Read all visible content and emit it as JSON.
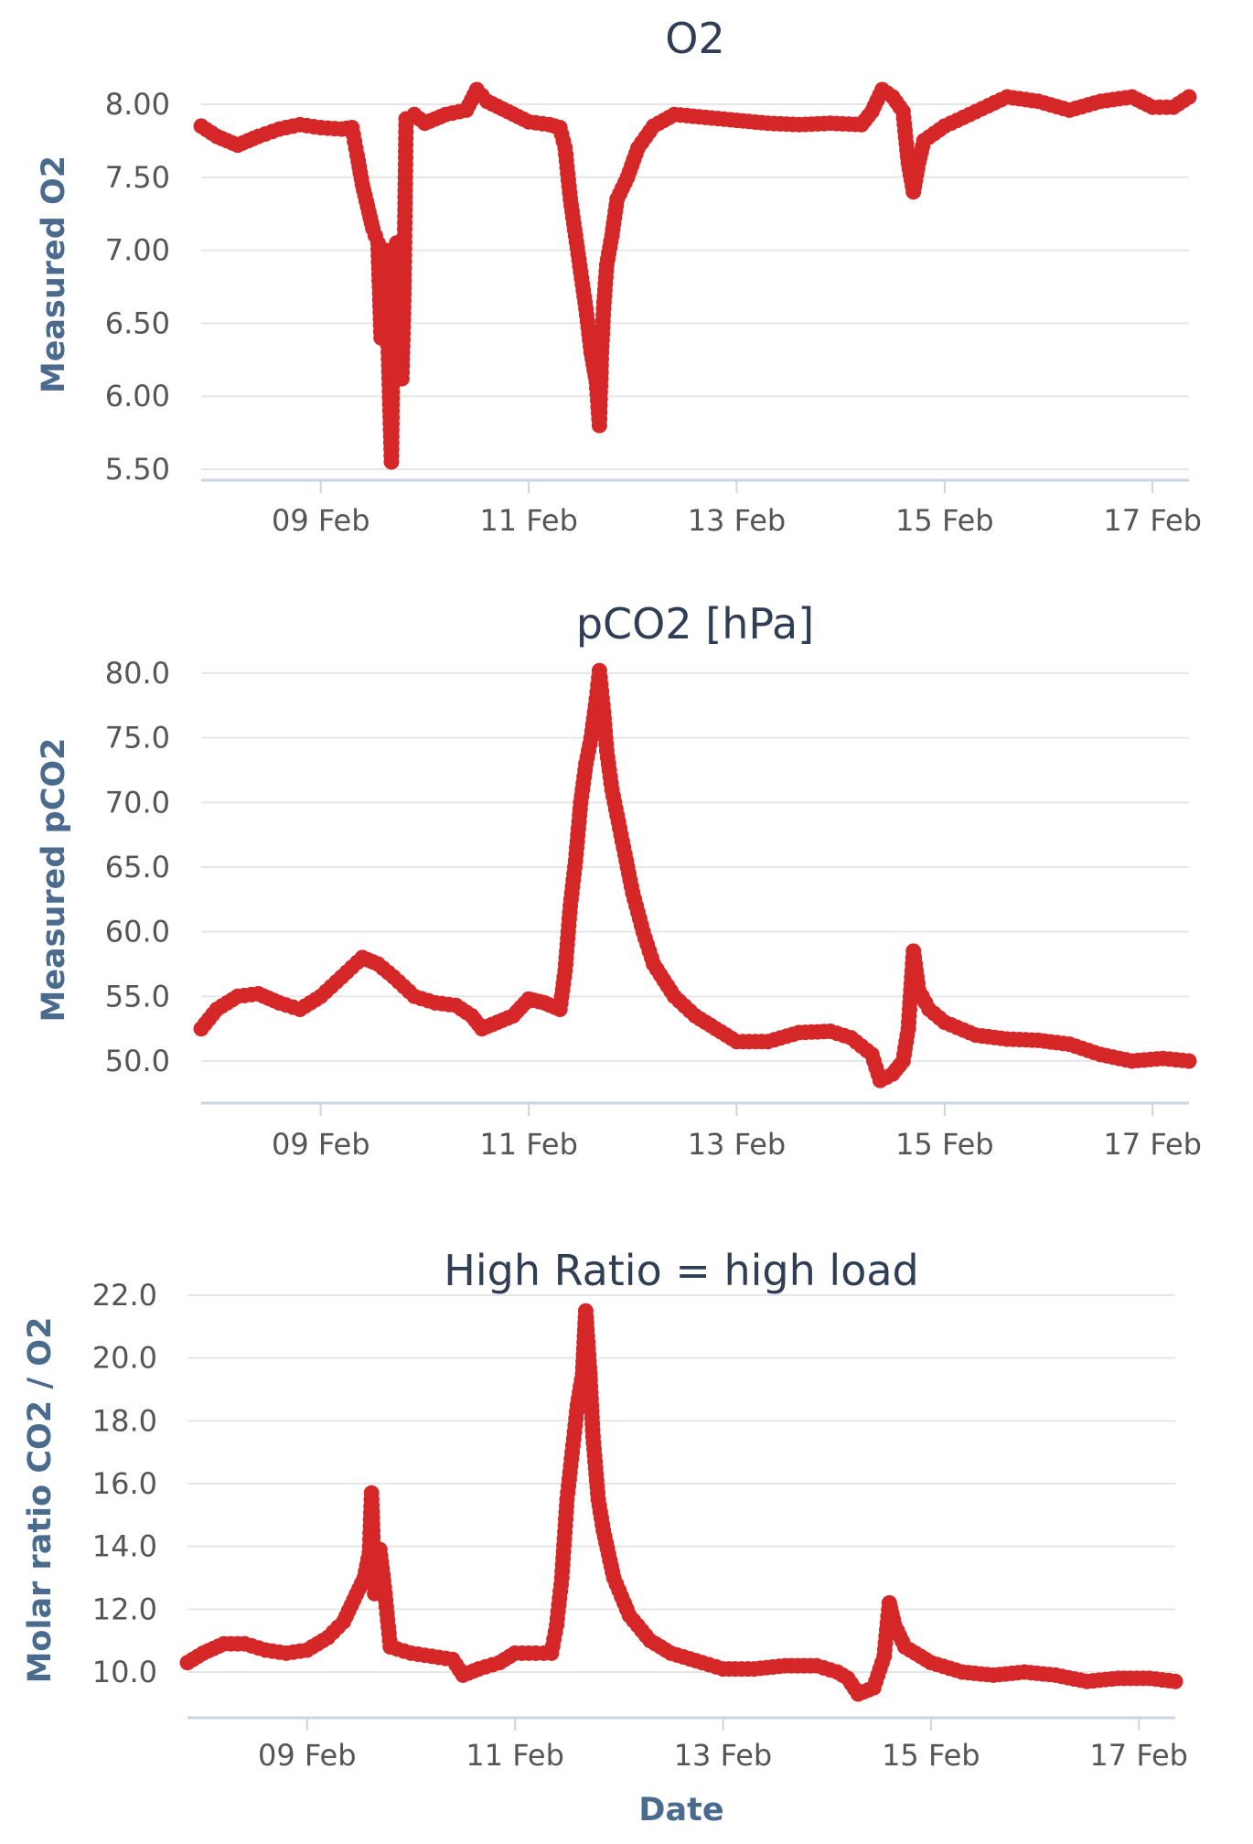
{
  "colors": {
    "series": "#d62728",
    "title": "#2f3e55",
    "axis_label": "#4a6a8e"
  },
  "chart_data": [
    {
      "type": "line",
      "title": "O2",
      "xlabel": "",
      "ylabel": "Measured O2",
      "ylim": [
        5.5,
        8.0
      ],
      "yticks": [
        "8.00",
        "7.50",
        "7.00",
        "6.50",
        "6.00",
        "5.50"
      ],
      "xlim": [
        7.85,
        17.35
      ],
      "xticks": [
        {
          "day": 9,
          "label": "09 Feb"
        },
        {
          "day": 11,
          "label": "11 Feb"
        },
        {
          "day": 13,
          "label": "13 Feb"
        },
        {
          "day": 15,
          "label": "15 Feb"
        },
        {
          "day": 17,
          "label": "17 Feb"
        }
      ],
      "grid": true,
      "legend": "none",
      "points": [
        [
          7.85,
          7.85
        ],
        [
          8.0,
          7.78
        ],
        [
          8.2,
          7.72
        ],
        [
          8.4,
          7.78
        ],
        [
          8.6,
          7.83
        ],
        [
          8.8,
          7.86
        ],
        [
          9.0,
          7.84
        ],
        [
          9.2,
          7.83
        ],
        [
          9.3,
          7.84
        ],
        [
          9.35,
          7.65
        ],
        [
          9.4,
          7.45
        ],
        [
          9.45,
          7.3
        ],
        [
          9.5,
          7.15
        ],
        [
          9.55,
          7.05
        ],
        [
          9.58,
          6.4
        ],
        [
          9.62,
          7.0
        ],
        [
          9.65,
          6.3
        ],
        [
          9.68,
          5.55
        ],
        [
          9.7,
          6.9
        ],
        [
          9.73,
          7.05
        ],
        [
          9.75,
          6.6
        ],
        [
          9.78,
          6.12
        ],
        [
          9.8,
          6.7
        ],
        [
          9.82,
          7.9
        ],
        [
          9.9,
          7.93
        ],
        [
          10.0,
          7.87
        ],
        [
          10.2,
          7.93
        ],
        [
          10.4,
          7.96
        ],
        [
          10.5,
          8.1
        ],
        [
          10.6,
          8.02
        ],
        [
          10.8,
          7.95
        ],
        [
          11.0,
          7.88
        ],
        [
          11.2,
          7.86
        ],
        [
          11.3,
          7.84
        ],
        [
          11.35,
          7.7
        ],
        [
          11.4,
          7.35
        ],
        [
          11.45,
          7.1
        ],
        [
          11.5,
          6.85
        ],
        [
          11.55,
          6.6
        ],
        [
          11.6,
          6.3
        ],
        [
          11.65,
          6.1
        ],
        [
          11.68,
          5.8
        ],
        [
          11.7,
          6.3
        ],
        [
          11.72,
          6.6
        ],
        [
          11.75,
          6.9
        ],
        [
          11.8,
          7.1
        ],
        [
          11.85,
          7.35
        ],
        [
          11.95,
          7.5
        ],
        [
          12.05,
          7.7
        ],
        [
          12.2,
          7.85
        ],
        [
          12.4,
          7.93
        ],
        [
          12.7,
          7.91
        ],
        [
          13.0,
          7.89
        ],
        [
          13.3,
          7.87
        ],
        [
          13.6,
          7.86
        ],
        [
          13.9,
          7.87
        ],
        [
          14.2,
          7.86
        ],
        [
          14.3,
          7.95
        ],
        [
          14.4,
          8.1
        ],
        [
          14.5,
          8.05
        ],
        [
          14.6,
          7.95
        ],
        [
          14.65,
          7.6
        ],
        [
          14.7,
          7.4
        ],
        [
          14.75,
          7.6
        ],
        [
          14.8,
          7.75
        ],
        [
          15.0,
          7.85
        ],
        [
          15.3,
          7.95
        ],
        [
          15.6,
          8.05
        ],
        [
          15.9,
          8.02
        ],
        [
          16.2,
          7.96
        ],
        [
          16.5,
          8.02
        ],
        [
          16.8,
          8.05
        ],
        [
          17.0,
          7.98
        ],
        [
          17.2,
          7.98
        ],
        [
          17.35,
          8.05
        ]
      ]
    },
    {
      "type": "line",
      "title": "pCO2 [hPa]",
      "xlabel": "",
      "ylabel": "Measured pCO2",
      "ylim": [
        50.0,
        80.0
      ],
      "yticks": [
        "80.0",
        "75.0",
        "70.0",
        "65.0",
        "60.0",
        "55.0",
        "50.0"
      ],
      "xlim": [
        7.85,
        17.35
      ],
      "xticks": [
        {
          "day": 9,
          "label": "09 Feb"
        },
        {
          "day": 11,
          "label": "11 Feb"
        },
        {
          "day": 13,
          "label": "13 Feb"
        },
        {
          "day": 15,
          "label": "15 Feb"
        },
        {
          "day": 17,
          "label": "17 Feb"
        }
      ],
      "grid": true,
      "legend": "none",
      "points": [
        [
          7.85,
          52.5
        ],
        [
          8.0,
          54.0
        ],
        [
          8.2,
          55.0
        ],
        [
          8.4,
          55.2
        ],
        [
          8.6,
          54.5
        ],
        [
          8.8,
          54.0
        ],
        [
          9.0,
          55.0
        ],
        [
          9.2,
          56.5
        ],
        [
          9.4,
          58.0
        ],
        [
          9.55,
          57.5
        ],
        [
          9.7,
          56.5
        ],
        [
          9.9,
          55.0
        ],
        [
          10.1,
          54.5
        ],
        [
          10.3,
          54.3
        ],
        [
          10.45,
          53.5
        ],
        [
          10.55,
          52.5
        ],
        [
          10.7,
          53.0
        ],
        [
          10.85,
          53.5
        ],
        [
          11.0,
          54.8
        ],
        [
          11.15,
          54.5
        ],
        [
          11.3,
          54.0
        ],
        [
          11.35,
          57.0
        ],
        [
          11.4,
          62.0
        ],
        [
          11.45,
          65.5
        ],
        [
          11.5,
          70.0
        ],
        [
          11.55,
          73.0
        ],
        [
          11.6,
          75.0
        ],
        [
          11.65,
          78.0
        ],
        [
          11.68,
          80.2
        ],
        [
          11.72,
          77.0
        ],
        [
          11.75,
          74.0
        ],
        [
          11.8,
          71.0
        ],
        [
          11.9,
          67.0
        ],
        [
          12.0,
          63.0
        ],
        [
          12.1,
          60.0
        ],
        [
          12.2,
          57.5
        ],
        [
          12.4,
          55.0
        ],
        [
          12.6,
          53.5
        ],
        [
          12.8,
          52.5
        ],
        [
          13.0,
          51.5
        ],
        [
          13.3,
          51.5
        ],
        [
          13.6,
          52.2
        ],
        [
          13.9,
          52.3
        ],
        [
          14.1,
          51.8
        ],
        [
          14.3,
          50.5
        ],
        [
          14.38,
          48.5
        ],
        [
          14.5,
          49.0
        ],
        [
          14.6,
          50.0
        ],
        [
          14.65,
          52.5
        ],
        [
          14.7,
          58.5
        ],
        [
          14.75,
          55.5
        ],
        [
          14.85,
          54.0
        ],
        [
          15.0,
          53.0
        ],
        [
          15.3,
          52.0
        ],
        [
          15.6,
          51.7
        ],
        [
          15.9,
          51.6
        ],
        [
          16.2,
          51.3
        ],
        [
          16.5,
          50.5
        ],
        [
          16.8,
          50.0
        ],
        [
          17.1,
          50.2
        ],
        [
          17.35,
          50.0
        ]
      ]
    },
    {
      "type": "line",
      "title": "High Ratio = high load",
      "xlabel": "Date",
      "ylabel": "Molar ratio CO2 / O2",
      "ylim": [
        10.0,
        22.0
      ],
      "yticks": [
        "22.0",
        "20.0",
        "18.0",
        "16.0",
        "14.0",
        "12.0",
        "10.0"
      ],
      "xlim": [
        7.85,
        17.35
      ],
      "xticks": [
        {
          "day": 9,
          "label": "09 Feb"
        },
        {
          "day": 11,
          "label": "11 Feb"
        },
        {
          "day": 13,
          "label": "13 Feb"
        },
        {
          "day": 15,
          "label": "15 Feb"
        },
        {
          "day": 17,
          "label": "17 Feb"
        }
      ],
      "grid": true,
      "legend": "none",
      "points": [
        [
          7.85,
          10.3
        ],
        [
          8.0,
          10.6
        ],
        [
          8.2,
          10.9
        ],
        [
          8.4,
          10.9
        ],
        [
          8.6,
          10.7
        ],
        [
          8.8,
          10.6
        ],
        [
          9.0,
          10.7
        ],
        [
          9.2,
          11.1
        ],
        [
          9.35,
          11.6
        ],
        [
          9.45,
          12.3
        ],
        [
          9.55,
          13.0
        ],
        [
          9.6,
          13.8
        ],
        [
          9.62,
          15.7
        ],
        [
          9.65,
          12.5
        ],
        [
          9.7,
          13.9
        ],
        [
          9.75,
          12.5
        ],
        [
          9.8,
          10.8
        ],
        [
          10.0,
          10.6
        ],
        [
          10.2,
          10.5
        ],
        [
          10.4,
          10.4
        ],
        [
          10.5,
          9.9
        ],
        [
          10.65,
          10.1
        ],
        [
          10.85,
          10.3
        ],
        [
          11.0,
          10.6
        ],
        [
          11.2,
          10.6
        ],
        [
          11.35,
          10.6
        ],
        [
          11.4,
          11.5
        ],
        [
          11.45,
          13.0
        ],
        [
          11.5,
          15.5
        ],
        [
          11.55,
          17.0
        ],
        [
          11.6,
          18.5
        ],
        [
          11.65,
          19.5
        ],
        [
          11.68,
          21.5
        ],
        [
          11.72,
          19.5
        ],
        [
          11.75,
          17.5
        ],
        [
          11.8,
          15.5
        ],
        [
          11.85,
          14.5
        ],
        [
          11.95,
          13.0
        ],
        [
          12.1,
          11.8
        ],
        [
          12.3,
          11.0
        ],
        [
          12.5,
          10.6
        ],
        [
          12.8,
          10.3
        ],
        [
          13.0,
          10.1
        ],
        [
          13.3,
          10.1
        ],
        [
          13.6,
          10.2
        ],
        [
          13.9,
          10.2
        ],
        [
          14.1,
          10.0
        ],
        [
          14.2,
          9.8
        ],
        [
          14.3,
          9.3
        ],
        [
          14.45,
          9.5
        ],
        [
          14.55,
          10.5
        ],
        [
          14.6,
          12.2
        ],
        [
          14.65,
          11.5
        ],
        [
          14.75,
          10.8
        ],
        [
          15.0,
          10.3
        ],
        [
          15.3,
          10.0
        ],
        [
          15.6,
          9.9
        ],
        [
          15.9,
          10.0
        ],
        [
          16.2,
          9.9
        ],
        [
          16.5,
          9.7
        ],
        [
          16.8,
          9.8
        ],
        [
          17.1,
          9.8
        ],
        [
          17.35,
          9.7
        ]
      ]
    }
  ]
}
